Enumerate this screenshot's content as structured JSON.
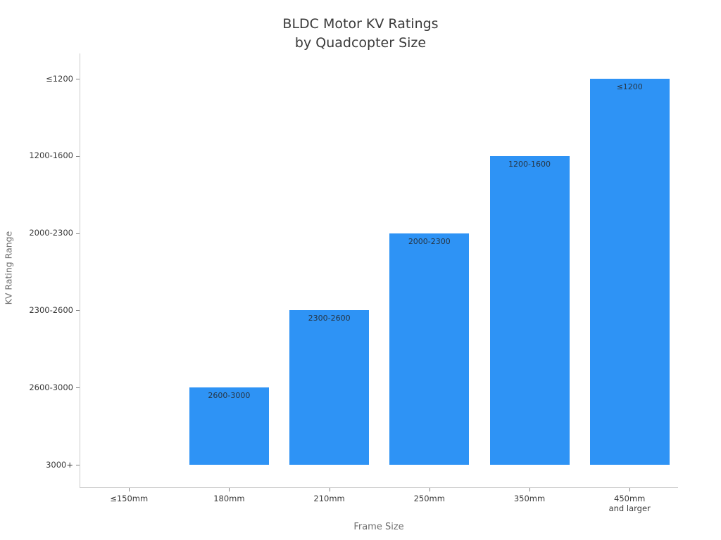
{
  "chart_data": {
    "type": "bar",
    "title_lines": [
      "BLDC Motor KV Ratings",
      "by Quadcopter Size"
    ],
    "xlabel": "Frame Size",
    "ylabel": "KV Rating Range",
    "y_tick_labels_top_to_bottom": [
      "≤1200",
      "1200-1600",
      "2000-2300",
      "2300-2600",
      "2600-3000",
      "3000+"
    ],
    "x_tick_labels": [
      [
        "≤150mm"
      ],
      [
        "180mm"
      ],
      [
        "210mm"
      ],
      [
        "250mm"
      ],
      [
        "350mm"
      ],
      [
        "450mm",
        "and larger"
      ]
    ],
    "bars": [
      {
        "category": "≤150mm",
        "kv_range": null,
        "level": 0
      },
      {
        "category": "180mm",
        "kv_range": "2600-3000",
        "level": 1
      },
      {
        "category": "210mm",
        "kv_range": "2300-2600",
        "level": 2
      },
      {
        "category": "250mm",
        "kv_range": "2000-2300",
        "level": 3
      },
      {
        "category": "350mm",
        "kv_range": "1200-1600",
        "level": 4
      },
      {
        "category": "450mm and larger",
        "kv_range": "≤1200",
        "level": 5
      }
    ],
    "y_axis_note": "ordinal axis; level = steps above the 3000+ baseline",
    "bar_color": "#2e93f5",
    "bar_label_color": "#263544",
    "tick_text_color": "#3a3a3a",
    "axis_title_color": "#6e6e6e",
    "grid": false,
    "legend": "none"
  }
}
